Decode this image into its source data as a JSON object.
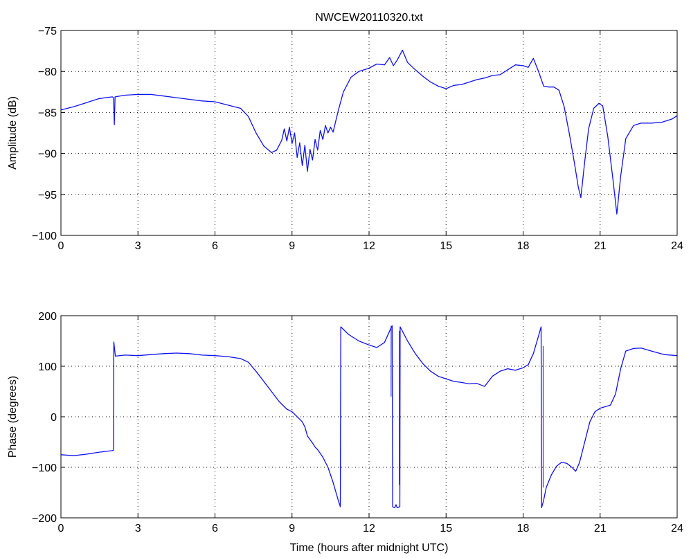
{
  "figure": {
    "background": "#ffffff",
    "line_color": "#1010ee"
  },
  "chart_data": [
    {
      "type": "line",
      "title": "NWCEW20110320.txt",
      "xlabel": "",
      "ylabel": "Amplitude (dB)",
      "xlim": [
        0,
        24
      ],
      "ylim": [
        -100,
        -75
      ],
      "xticks": [
        0,
        3,
        6,
        9,
        12,
        15,
        18,
        21,
        24
      ],
      "xtick_labels": [
        "0",
        "3",
        "6",
        "9",
        "12",
        "15",
        "18",
        "21",
        "24"
      ],
      "yticks": [
        -100,
        -95,
        -90,
        -85,
        -80,
        -75
      ],
      "ytick_labels": [
        "−100",
        "−95",
        "−90",
        "−85",
        "−80",
        "−75"
      ],
      "grid": true,
      "series": [
        {
          "color": "#1010ee",
          "points": [
            [
              0.0,
              -84.7
            ],
            [
              0.5,
              -84.3
            ],
            [
              1.0,
              -83.8
            ],
            [
              1.5,
              -83.3
            ],
            [
              2.0,
              -83.1
            ],
            [
              2.05,
              -83.2
            ],
            [
              2.08,
              -86.5
            ],
            [
              2.11,
              -83.1
            ],
            [
              2.5,
              -82.9
            ],
            [
              3.0,
              -82.8
            ],
            [
              3.5,
              -82.8
            ],
            [
              4.0,
              -83.0
            ],
            [
              4.5,
              -83.2
            ],
            [
              5.0,
              -83.4
            ],
            [
              5.5,
              -83.6
            ],
            [
              6.0,
              -83.7
            ],
            [
              6.5,
              -84.1
            ],
            [
              7.0,
              -84.5
            ],
            [
              7.3,
              -85.5
            ],
            [
              7.6,
              -87.5
            ],
            [
              7.9,
              -89.1
            ],
            [
              8.2,
              -89.9
            ],
            [
              8.4,
              -89.6
            ],
            [
              8.6,
              -88.4
            ],
            [
              8.7,
              -87.0
            ],
            [
              8.8,
              -88.5
            ],
            [
              8.9,
              -86.8
            ],
            [
              9.0,
              -88.8
            ],
            [
              9.1,
              -87.5
            ],
            [
              9.2,
              -90.5
            ],
            [
              9.3,
              -88.7
            ],
            [
              9.4,
              -91.5
            ],
            [
              9.5,
              -89.0
            ],
            [
              9.6,
              -92.2
            ],
            [
              9.7,
              -89.5
            ],
            [
              9.8,
              -90.8
            ],
            [
              9.9,
              -88.3
            ],
            [
              10.0,
              -89.6
            ],
            [
              10.1,
              -87.2
            ],
            [
              10.2,
              -88.3
            ],
            [
              10.3,
              -86.6
            ],
            [
              10.4,
              -87.5
            ],
            [
              10.5,
              -86.8
            ],
            [
              10.6,
              -87.4
            ],
            [
              10.8,
              -84.8
            ],
            [
              11.0,
              -82.5
            ],
            [
              11.3,
              -80.7
            ],
            [
              11.6,
              -80.0
            ],
            [
              12.0,
              -79.6
            ],
            [
              12.3,
              -79.1
            ],
            [
              12.6,
              -79.2
            ],
            [
              12.8,
              -78.3
            ],
            [
              12.95,
              -79.3
            ],
            [
              13.1,
              -78.6
            ],
            [
              13.3,
              -77.4
            ],
            [
              13.5,
              -78.9
            ],
            [
              13.8,
              -79.8
            ],
            [
              14.1,
              -80.6
            ],
            [
              14.4,
              -81.3
            ],
            [
              14.7,
              -81.8
            ],
            [
              15.0,
              -82.1
            ],
            [
              15.3,
              -81.7
            ],
            [
              15.6,
              -81.6
            ],
            [
              15.9,
              -81.3
            ],
            [
              16.2,
              -81.0
            ],
            [
              16.5,
              -80.8
            ],
            [
              16.8,
              -80.5
            ],
            [
              17.1,
              -80.4
            ],
            [
              17.4,
              -79.8
            ],
            [
              17.7,
              -79.2
            ],
            [
              18.0,
              -79.3
            ],
            [
              18.2,
              -79.5
            ],
            [
              18.4,
              -78.4
            ],
            [
              18.6,
              -80.0
            ],
            [
              18.8,
              -81.8
            ],
            [
              19.0,
              -81.9
            ],
            [
              19.2,
              -81.9
            ],
            [
              19.4,
              -82.3
            ],
            [
              19.6,
              -84.3
            ],
            [
              19.8,
              -87.6
            ],
            [
              20.0,
              -91.2
            ],
            [
              20.15,
              -94.1
            ],
            [
              20.25,
              -95.4
            ],
            [
              20.4,
              -91.0
            ],
            [
              20.55,
              -87.0
            ],
            [
              20.75,
              -84.5
            ],
            [
              20.95,
              -83.9
            ],
            [
              21.1,
              -84.2
            ],
            [
              21.3,
              -88.0
            ],
            [
              21.5,
              -93.2
            ],
            [
              21.65,
              -97.4
            ],
            [
              21.8,
              -92.8
            ],
            [
              22.0,
              -88.2
            ],
            [
              22.3,
              -86.6
            ],
            [
              22.6,
              -86.3
            ],
            [
              23.0,
              -86.3
            ],
            [
              23.4,
              -86.2
            ],
            [
              23.8,
              -85.8
            ],
            [
              24.0,
              -85.4
            ]
          ]
        }
      ]
    },
    {
      "type": "line",
      "title": "",
      "xlabel": "Time (hours after midnight UTC)",
      "ylabel": "Phase (degrees)",
      "xlim": [
        0,
        24
      ],
      "ylim": [
        -200,
        200
      ],
      "xticks": [
        0,
        3,
        6,
        9,
        12,
        15,
        18,
        21,
        24
      ],
      "xtick_labels": [
        "0",
        "3",
        "6",
        "9",
        "12",
        "15",
        "18",
        "21",
        "24"
      ],
      "yticks": [
        -200,
        -100,
        0,
        100,
        200
      ],
      "ytick_labels": [
        "−200",
        "−100",
        "0",
        "100",
        "200"
      ],
      "grid": true,
      "series": [
        {
          "color": "#1010ee",
          "points": [
            [
              0.0,
              -75
            ],
            [
              0.5,
              -77
            ],
            [
              1.0,
              -74
            ],
            [
              1.5,
              -70
            ],
            [
              2.0,
              -67
            ],
            [
              2.05,
              -66
            ],
            [
              2.06,
              148
            ],
            [
              2.12,
              120
            ],
            [
              2.5,
              122
            ],
            [
              3.0,
              121
            ],
            [
              3.5,
              123
            ],
            [
              4.0,
              125
            ],
            [
              4.5,
              126
            ],
            [
              5.0,
              125
            ],
            [
              5.5,
              122
            ],
            [
              6.0,
              121
            ],
            [
              6.5,
              119
            ],
            [
              7.0,
              115
            ],
            [
              7.3,
              108
            ],
            [
              7.6,
              90
            ],
            [
              7.9,
              70
            ],
            [
              8.2,
              50
            ],
            [
              8.5,
              30
            ],
            [
              8.8,
              15
            ],
            [
              9.0,
              10
            ],
            [
              9.2,
              0
            ],
            [
              9.4,
              -10
            ],
            [
              9.5,
              -20
            ],
            [
              9.6,
              -38
            ],
            [
              9.7,
              -45
            ],
            [
              9.8,
              -52
            ],
            [
              9.9,
              -60
            ],
            [
              10.0,
              -65
            ],
            [
              10.2,
              -80
            ],
            [
              10.4,
              -100
            ],
            [
              10.6,
              -130
            ],
            [
              10.8,
              -165
            ],
            [
              10.88,
              -178
            ],
            [
              10.9,
              178
            ],
            [
              11.2,
              163
            ],
            [
              11.6,
              150
            ],
            [
              12.0,
              142
            ],
            [
              12.3,
              137
            ],
            [
              12.6,
              147
            ],
            [
              12.85,
              175
            ],
            [
              12.9,
              180
            ],
            [
              12.92,
              -178
            ],
            [
              13.0,
              -180
            ],
            [
              13.05,
              -174
            ],
            [
              13.1,
              -180
            ],
            [
              13.2,
              -178
            ],
            [
              13.21,
              178
            ],
            [
              13.5,
              150
            ],
            [
              13.8,
              125
            ],
            [
              14.1,
              105
            ],
            [
              14.4,
              90
            ],
            [
              14.7,
              80
            ],
            [
              15.0,
              75
            ],
            [
              15.3,
              70
            ],
            [
              15.6,
              68
            ],
            [
              15.9,
              65
            ],
            [
              16.2,
              66
            ],
            [
              16.5,
              60
            ],
            [
              16.8,
              80
            ],
            [
              17.1,
              90
            ],
            [
              17.4,
              95
            ],
            [
              17.7,
              92
            ],
            [
              18.0,
              97
            ],
            [
              18.2,
              103
            ],
            [
              18.4,
              125
            ],
            [
              18.6,
              160
            ],
            [
              18.7,
              178
            ],
            [
              18.72,
              -180
            ],
            [
              18.8,
              -165
            ],
            [
              18.9,
              -140
            ],
            [
              19.1,
              -115
            ],
            [
              19.3,
              -98
            ],
            [
              19.5,
              -90
            ],
            [
              19.7,
              -92
            ],
            [
              19.9,
              -100
            ],
            [
              20.05,
              -108
            ],
            [
              20.2,
              -90
            ],
            [
              20.4,
              -50
            ],
            [
              20.6,
              -10
            ],
            [
              20.8,
              10
            ],
            [
              21.0,
              17
            ],
            [
              21.2,
              20
            ],
            [
              21.4,
              23
            ],
            [
              21.6,
              45
            ],
            [
              21.8,
              95
            ],
            [
              22.0,
              130
            ],
            [
              22.3,
              135
            ],
            [
              22.6,
              136
            ],
            [
              23.0,
              130
            ],
            [
              23.5,
              123
            ],
            [
              24.0,
              121
            ]
          ],
          "spikes": [
            [
              12.86,
              180,
              40
            ],
            [
              13.18,
              170,
              -135
            ],
            [
              18.78,
              140,
              -140
            ]
          ]
        }
      ]
    }
  ]
}
